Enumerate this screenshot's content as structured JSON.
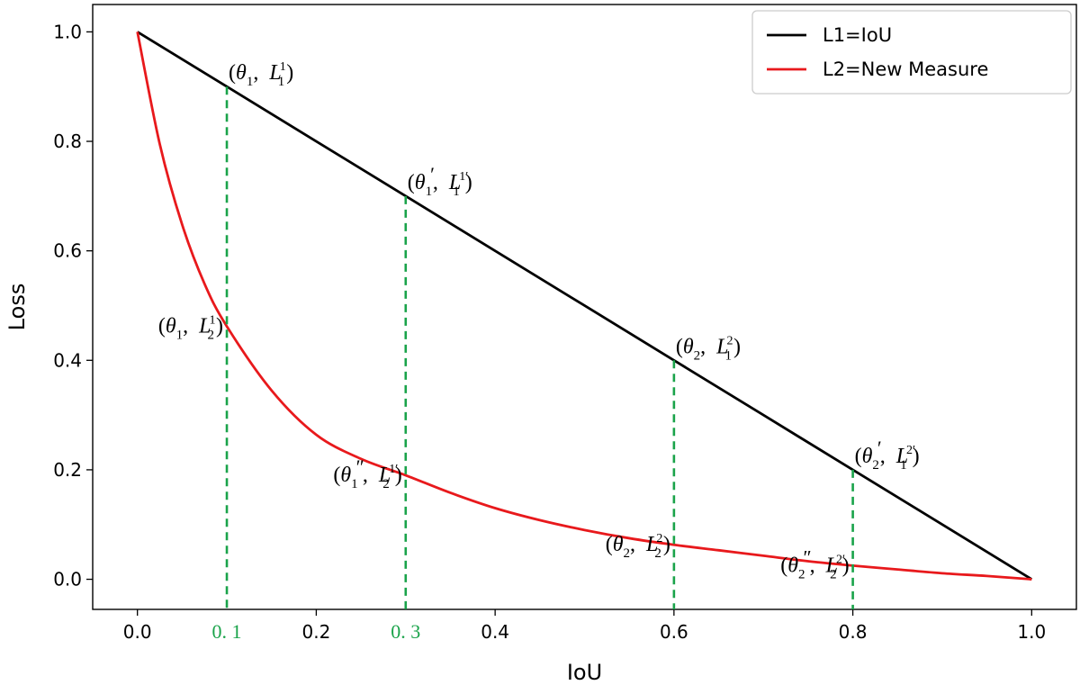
{
  "chart_data": {
    "type": "line",
    "xlabel": "IoU",
    "ylabel": "Loss",
    "xlim": [
      -0.05,
      1.05
    ],
    "ylim": [
      -0.055,
      1.05
    ],
    "xticks": [
      "0.0",
      "0.2",
      "0.4",
      "0.6",
      "0.8",
      "1.0"
    ],
    "xtick_values": [
      0.0,
      0.2,
      0.4,
      0.6,
      0.8,
      1.0
    ],
    "extra_xticks": [
      {
        "label": "0. 1",
        "value": 0.1
      },
      {
        "label": "0. 3",
        "value": 0.3
      }
    ],
    "yticks": [
      "0.0",
      "0.2",
      "0.4",
      "0.6",
      "0.8",
      "1.0"
    ],
    "ytick_values": [
      0.0,
      0.2,
      0.4,
      0.6,
      0.8,
      1.0
    ],
    "grid": false,
    "legend_position": "top-right",
    "series": [
      {
        "name": "L1=IoU",
        "color": "#000000",
        "x": [
          0.0,
          0.1,
          0.2,
          0.3,
          0.4,
          0.5,
          0.6,
          0.7,
          0.8,
          0.9,
          1.0
        ],
        "y": [
          1.0,
          0.9,
          0.8,
          0.7,
          0.6,
          0.5,
          0.4,
          0.3,
          0.2,
          0.1,
          0.0
        ]
      },
      {
        "name": "L2=New Measure",
        "color": "#e8191c",
        "x": [
          0.0,
          0.025,
          0.05,
          0.075,
          0.1,
          0.15,
          0.2,
          0.25,
          0.3,
          0.35,
          0.4,
          0.45,
          0.5,
          0.55,
          0.6,
          0.65,
          0.7,
          0.75,
          0.8,
          0.85,
          0.9,
          0.95,
          1.0
        ],
        "y": [
          1.0,
          0.795,
          0.648,
          0.54,
          0.462,
          0.345,
          0.264,
          0.22,
          0.19,
          0.158,
          0.13,
          0.108,
          0.09,
          0.075,
          0.063,
          0.053,
          0.043,
          0.033,
          0.025,
          0.018,
          0.011,
          0.006,
          0.0
        ]
      }
    ],
    "vlines": {
      "color": "#1aa34a",
      "items": [
        {
          "x": 0.1,
          "y_top": 0.9
        },
        {
          "x": 0.3,
          "y_top": 0.7
        },
        {
          "x": 0.6,
          "y_top": 0.4
        },
        {
          "x": 0.8,
          "y_top": 0.2
        }
      ]
    },
    "annotations": [
      {
        "x": 0.1,
        "y": 0.9,
        "anchor": "bl",
        "theta": "θ",
        "theta_sub": "1",
        "theta_prime": "",
        "L": "L",
        "L_sup": "1",
        "L_sub": "1"
      },
      {
        "x": 0.3,
        "y": 0.7,
        "anchor": "bl",
        "theta": "θ",
        "theta_sub": "1",
        "theta_prime": "′",
        "L": "L",
        "L_sup": "1′",
        "L_sub": "1"
      },
      {
        "x": 0.1,
        "y": 0.462,
        "anchor": "r",
        "theta": "θ",
        "theta_sub": "1",
        "theta_prime": "",
        "L": "L",
        "L_sup": "1",
        "L_sub": "2"
      },
      {
        "x": 0.6,
        "y": 0.4,
        "anchor": "bl",
        "theta": "θ",
        "theta_sub": "2",
        "theta_prime": "",
        "L": "L",
        "L_sup": "2",
        "L_sub": "1"
      },
      {
        "x": 0.8,
        "y": 0.2,
        "anchor": "bl",
        "theta": "θ",
        "theta_sub": "2",
        "theta_prime": "′",
        "L": "L",
        "L_sup": "2′",
        "L_sub": "1"
      },
      {
        "x": 0.3,
        "y": 0.19,
        "anchor": "r",
        "theta": "θ",
        "theta_sub": "1",
        "theta_prime": "″",
        "L": "L",
        "L_sup": "1′",
        "L_sub": "2"
      },
      {
        "x": 0.6,
        "y": 0.063,
        "anchor": "r",
        "theta": "θ",
        "theta_sub": "2",
        "theta_prime": "",
        "L": "L",
        "L_sup": "2",
        "L_sub": "2"
      },
      {
        "x": 0.8,
        "y": 0.025,
        "anchor": "r",
        "theta": "θ",
        "theta_sub": "2",
        "theta_prime": "″",
        "L": "L",
        "L_sup": "2′",
        "L_sub": "2"
      }
    ]
  }
}
